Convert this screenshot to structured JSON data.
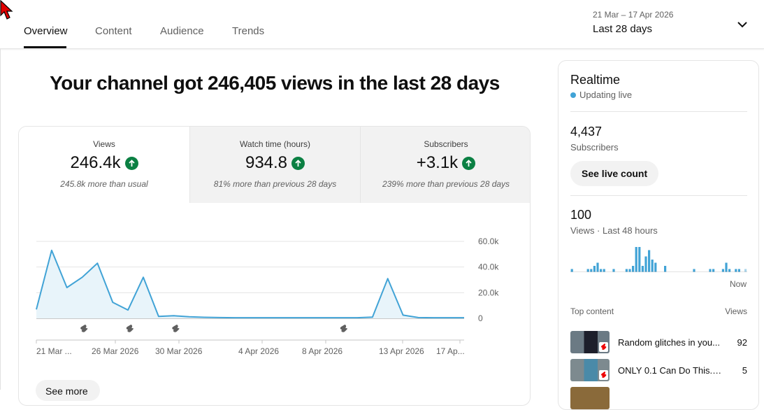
{
  "tabs": [
    {
      "label": "Overview",
      "active": true
    },
    {
      "label": "Content",
      "active": false
    },
    {
      "label": "Audience",
      "active": false
    },
    {
      "label": "Trends",
      "active": false
    }
  ],
  "date_range": {
    "dates": "21 Mar – 17 Apr 2026",
    "period": "Last 28 days"
  },
  "headline": "Your channel got 246,405 views in the last 28 days",
  "metrics": [
    {
      "label": "Views",
      "value": "246.4k",
      "note": "245.8k more than usual",
      "selected": true
    },
    {
      "label": "Watch time (hours)",
      "value": "934.8",
      "note": "81% more than previous 28 days",
      "selected": false
    },
    {
      "label": "Subscribers",
      "value": "+3.1k",
      "note": "239% more than previous 28 days",
      "selected": false
    }
  ],
  "colors": {
    "accent": "#41a3d6",
    "up_green": "#0b8043",
    "fill": "#e8f4fa"
  },
  "chart_data": {
    "type": "area",
    "series": [
      {
        "values": [
          7000,
          53000,
          24000,
          32000,
          43000,
          12500,
          6500,
          32000,
          1500,
          2000,
          1200,
          800,
          600,
          500,
          500,
          500,
          500,
          500,
          500,
          500,
          500,
          500,
          1000,
          31000,
          2500,
          600,
          500,
          500,
          500
        ]
      }
    ],
    "y_ticks": [
      "60.0k",
      "40.0k",
      "20.0k",
      "0"
    ],
    "ylim": [
      0,
      60000
    ],
    "x_ticks": [
      "21 Mar ...",
      "26 Mar 2026",
      "30 Mar 2026",
      "4 Apr 2026",
      "8 Apr 2026",
      "13 Apr 2026",
      "17 Ap..."
    ],
    "shorts_markers": 4,
    "grid": true
  },
  "see_more": "See more",
  "realtime": {
    "title": "Realtime",
    "status": "Updating live",
    "subscribers_value": "4,437",
    "subscribers_label": "Subscribers",
    "live_count_button": "See live count",
    "views_value": "100",
    "views_label": "Views · Last 48 hours",
    "bars": [
      1,
      0,
      0,
      0,
      0,
      1,
      1,
      2,
      3,
      1,
      1,
      0,
      0,
      1,
      0,
      0,
      0,
      1,
      1,
      2,
      8,
      8,
      2,
      5,
      7,
      4,
      3,
      0,
      0,
      2,
      0,
      0,
      0,
      0,
      0,
      0,
      0,
      0,
      1,
      0,
      0,
      0,
      0,
      1,
      1,
      0,
      0,
      1,
      3,
      1,
      0,
      1,
      1,
      0,
      1
    ],
    "now_label": "Now",
    "top_content_label": "Top content",
    "top_content_views_label": "Views",
    "top_content": [
      {
        "title": "Random glitches in you...",
        "views": "92"
      },
      {
        "title": "ONLY 0.1 Can Do This.. ...",
        "views": "5"
      }
    ]
  }
}
